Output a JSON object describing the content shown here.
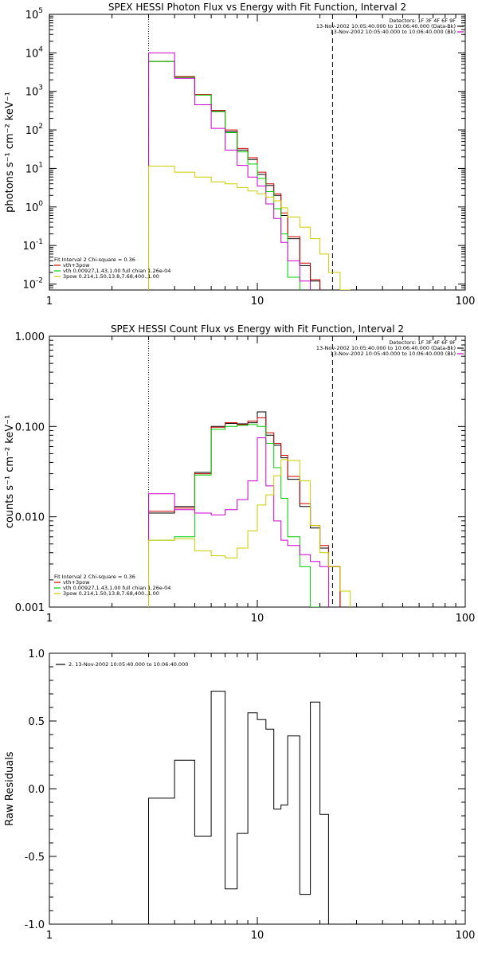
{
  "chart_data": [
    {
      "type": "line",
      "title": "SPEX HESSI Photon Flux vs Energy with Fit Function, Interval 2",
      "ylabel": "photons s⁻¹ cm⁻² keV⁻¹",
      "xlim": [
        1,
        100
      ],
      "ylim": [
        0.007,
        100000
      ],
      "xscale": "log",
      "yscale": "log",
      "xticks": [
        "1",
        "10",
        "100"
      ],
      "yticks": [
        {
          "v": 0.01,
          "b": "10",
          "e": "-2"
        },
        {
          "v": 0.1,
          "b": "10",
          "e": "-1"
        },
        {
          "v": 1,
          "b": "10",
          "e": "0"
        },
        {
          "v": 10,
          "b": "10",
          "e": "1"
        },
        {
          "v": 100,
          "b": "10",
          "e": "2"
        },
        {
          "v": 1000,
          "b": "10",
          "e": "3"
        },
        {
          "v": 10000,
          "b": "10",
          "e": "4"
        },
        {
          "v": 100000,
          "b": "10",
          "e": "5"
        }
      ],
      "vlines": [
        {
          "x": 3,
          "style": "dotted"
        },
        {
          "x": 23,
          "style": "dashed"
        }
      ],
      "edges": [
        3,
        4,
        5,
        6,
        7,
        8,
        9,
        10,
        11,
        12,
        13,
        14,
        16,
        18,
        20,
        22,
        25,
        28
      ],
      "legend_right": [
        {
          "text": "Detectors: 1F 3F 4F 6F 9F",
          "color": null
        },
        {
          "text": "13-Nov-2002 10:05:40.000 to 10:06:40.000 (Data-Bk)",
          "color": "#000000"
        },
        {
          "text": "13-Nov-2002 10:05:40.000 to 10:06:40.000 (Bk)",
          "color": "#cc00cc"
        }
      ],
      "legend_left": [
        {
          "text": "Fit Interval 2   Chi-square = 0.36",
          "color": null
        },
        {
          "text": "vth+3pow",
          "color": "#cc0000"
        },
        {
          "text": "vth 0.00927,1.43,1.00  full chian 1.26e-04",
          "color": "#00cc00"
        },
        {
          "text": "3pow 0.214,1.50,13.8,7.68,400.,1.00",
          "color": "#cccc00"
        }
      ],
      "series": [
        {
          "color": "#000000",
          "values": [
            6000,
            2400,
            820,
            310,
            90,
            30,
            17,
            7,
            3.6,
            2,
            0.6,
            0.15,
            0.03,
            0.012,
            null,
            null,
            null
          ]
        },
        {
          "color": "#cc0000",
          "values": [
            6000,
            2400,
            830,
            320,
            100,
            33,
            19,
            8,
            4,
            2.2,
            0.7,
            0.17,
            0.035,
            0.013,
            null,
            null,
            null
          ]
        },
        {
          "color": "#00cc00",
          "values": [
            6000,
            2300,
            800,
            300,
            85,
            27,
            13,
            5.5,
            2.5,
            0.9,
            0.2,
            0.015,
            null,
            null,
            null,
            null,
            null
          ]
        },
        {
          "color": "#cc00cc",
          "values": [
            10000,
            2200,
            450,
            110,
            30,
            12,
            6,
            3.5,
            1.2,
            0.5,
            0.12,
            0.04,
            0.012,
            null,
            null,
            null,
            null
          ]
        },
        {
          "color": "#cccc00",
          "values": [
            11.5,
            8,
            6,
            4.5,
            4,
            3.2,
            2.6,
            2.2,
            1.8,
            1.45,
            0.95,
            0.55,
            0.3,
            0.15,
            0.06,
            0.02,
            0.007
          ]
        }
      ]
    },
    {
      "type": "line",
      "title": "SPEX HESSI Count Flux vs Energy with Fit Function, Interval 2",
      "ylabel": "counts s⁻¹ cm⁻² keV⁻¹",
      "xlim": [
        1,
        100
      ],
      "ylim": [
        0.001,
        1.0
      ],
      "xscale": "log",
      "yscale": "log",
      "xticks": [
        "1",
        "10",
        "100"
      ],
      "yticks": [
        {
          "v": 0.001,
          "t": "0.001"
        },
        {
          "v": 0.01,
          "t": "0.010"
        },
        {
          "v": 0.1,
          "t": "0.100"
        },
        {
          "v": 1,
          "t": "1.000"
        }
      ],
      "vlines": [
        {
          "x": 3,
          "style": "dotted"
        },
        {
          "x": 23,
          "style": "dashed"
        }
      ],
      "edges": [
        3,
        4,
        5,
        6,
        7,
        8,
        9,
        10,
        11,
        12,
        13,
        14,
        16,
        18,
        20,
        22,
        25,
        28
      ],
      "legend_right": [
        {
          "text": "Detectors: 1F 3F 4F 6F 9F",
          "color": null
        },
        {
          "text": "13-Nov-2002 10:05:40.000 to 10:06:40.000 (Data-Bk)",
          "color": "#000000"
        },
        {
          "text": "13-Nov-2002 10:05:40.000 to 10:06:40.000 (Bk)",
          "color": "#cc00cc"
        }
      ],
      "legend_left": [
        {
          "text": "Fit Interval 2   Chi-square = 0.36",
          "color": null
        },
        {
          "text": "vth+3pow",
          "color": "#cc0000"
        },
        {
          "text": "vth 0.00927,1.43,1.00  full chian 1.26e-04",
          "color": "#00cc00"
        },
        {
          "text": "3pow 0.214,1.50,13.8,7.68,400.,1.00",
          "color": "#cccc00"
        }
      ],
      "series": [
        {
          "color": "#000000",
          "values": [
            0.011,
            0.013,
            0.031,
            0.1,
            0.108,
            0.107,
            0.11,
            0.145,
            0.08,
            0.062,
            0.045,
            0.026,
            0.013,
            0.0075,
            0.0045,
            0.0028,
            null
          ]
        },
        {
          "color": "#cc0000",
          "values": [
            0.0115,
            0.0125,
            0.03,
            0.098,
            0.11,
            0.105,
            0.115,
            0.125,
            0.085,
            0.065,
            0.048,
            0.028,
            0.014,
            0.008,
            0.0048,
            0.0028,
            null
          ]
        },
        {
          "color": "#00cc00",
          "values": [
            0.0055,
            0.006,
            0.029,
            0.093,
            0.1,
            0.103,
            0.105,
            0.1,
            0.065,
            0.035,
            0.016,
            0.006,
            0.0028,
            0.001,
            null,
            null,
            null
          ]
        },
        {
          "color": "#cc00cc",
          "values": [
            0.018,
            0.012,
            0.011,
            0.0105,
            0.012,
            0.0155,
            0.025,
            0.075,
            0.022,
            0.009,
            0.0055,
            0.0048,
            0.0038,
            0.0032,
            0.0028,
            null,
            null
          ]
        },
        {
          "color": "#cccc00",
          "values": [
            0.0055,
            0.0057,
            0.0042,
            0.0037,
            0.0035,
            0.0045,
            0.007,
            0.0135,
            0.0175,
            0.0285,
            0.043,
            0.042,
            0.025,
            0.008,
            0.004,
            0.0028,
            0.0015
          ]
        }
      ]
    },
    {
      "type": "line",
      "title": "",
      "ylabel": "Raw Residuals",
      "xlim": [
        1,
        100
      ],
      "ylim": [
        -1.0,
        1.0
      ],
      "xscale": "log",
      "yscale": "linear",
      "xticks": [
        "1",
        "10",
        "100"
      ],
      "yticks": [
        {
          "v": -1.0,
          "t": "-1.0"
        },
        {
          "v": -0.5,
          "t": "-0.5"
        },
        {
          "v": 0.0,
          "t": "0.0"
        },
        {
          "v": 0.5,
          "t": "0.5"
        },
        {
          "v": 1.0,
          "t": "1.0"
        }
      ],
      "legend_left_top": [
        {
          "text": "2. 13-Nov-2002 10:05:40.000 to 10:06:40.000",
          "color": "#000000"
        }
      ],
      "edges": [
        3,
        4,
        5,
        6,
        7,
        8,
        9,
        10,
        11,
        12,
        13,
        14,
        16,
        18,
        20,
        22
      ],
      "series": [
        {
          "color": "#000000",
          "values": [
            -0.07,
            0.21,
            -0.35,
            0.72,
            -0.74,
            -0.33,
            0.56,
            0.51,
            0.44,
            -0.15,
            -0.12,
            0.39,
            -0.78,
            0.64,
            -0.19
          ]
        }
      ]
    }
  ]
}
